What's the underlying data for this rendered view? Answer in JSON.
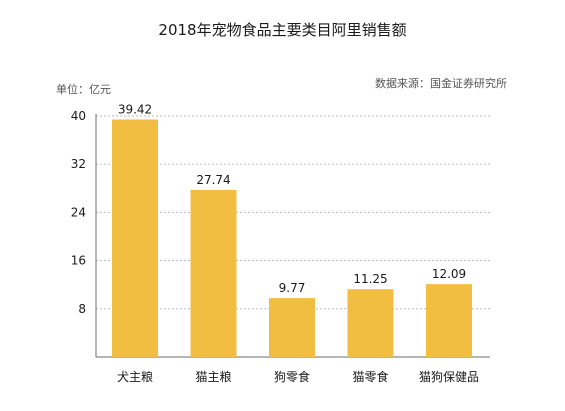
{
  "chart_data": {
    "type": "bar",
    "title": "2018年宠物食品主要类目阿里销售额",
    "unit_label": "单位：亿元",
    "source": "数据来源：国金证券研究所",
    "categories": [
      "犬主粮",
      "猫主粮",
      "狗零食",
      "猫零食",
      "猫狗保健品"
    ],
    "values": [
      39.42,
      27.74,
      9.77,
      11.25,
      12.09
    ],
    "data_labels": [
      "39.42",
      "27.74",
      "9.77",
      "11.25",
      "12.09"
    ],
    "ylim": [
      0,
      40
    ],
    "yticks": [
      8,
      16,
      24,
      32,
      40
    ],
    "ytick_labels": [
      "8",
      "16",
      "24",
      "32",
      "40"
    ],
    "grid": true,
    "xlabel": "",
    "ylabel": ""
  },
  "colors": {
    "bar": "#F2BE41",
    "grid": "#BDBDBD",
    "axis": "#6E6E6E"
  }
}
